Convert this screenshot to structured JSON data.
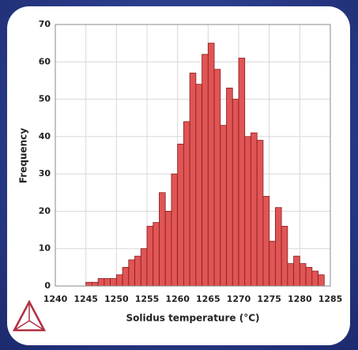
{
  "chart_data": {
    "type": "histogram",
    "xlabel": "Solidus temperature (°C)",
    "ylabel": "Frequency",
    "bins": [
      1245,
      1246,
      1247,
      1248,
      1249,
      1250,
      1251,
      1252,
      1253,
      1254,
      1255,
      1256,
      1257,
      1258,
      1259,
      1260,
      1261,
      1262,
      1263,
      1264,
      1265,
      1266,
      1267,
      1268,
      1269,
      1270,
      1271,
      1272,
      1273,
      1274,
      1275,
      1276,
      1277,
      1278,
      1279,
      1280,
      1281,
      1282,
      1283,
      1284
    ],
    "values": [
      1,
      1,
      2,
      2,
      2,
      3,
      5,
      7,
      8,
      10,
      16,
      17,
      25,
      20,
      30,
      38,
      44,
      57,
      54,
      62,
      65,
      58,
      43,
      53,
      50,
      61,
      40,
      41,
      39,
      24,
      12,
      21,
      16,
      6,
      8,
      6,
      5,
      4,
      3
    ],
    "color": "#e05555",
    "xlim": [
      1240,
      1285
    ],
    "xticks": [
      1240,
      1245,
      1250,
      1255,
      1260,
      1265,
      1270,
      1275,
      1280,
      1285
    ],
    "ylim": [
      0,
      70
    ],
    "yticks": [
      0,
      10,
      20,
      30,
      40,
      50,
      60,
      70
    ],
    "grid": true
  }
}
